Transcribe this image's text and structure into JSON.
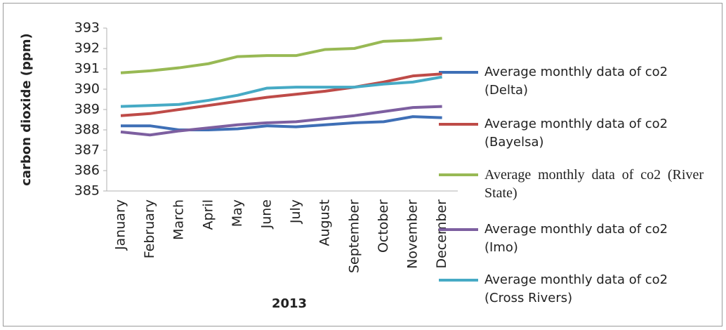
{
  "chart_data": {
    "type": "line",
    "x_label": "2013",
    "y_label": "carbon dioxide (ppm)",
    "categories": [
      "January",
      "February",
      "March",
      "April",
      "May",
      "June",
      "July",
      "August",
      "September",
      "October",
      "November",
      "December"
    ],
    "ylim": [
      385,
      393
    ],
    "yticks": [
      385,
      386,
      387,
      388,
      389,
      390,
      391,
      392,
      393
    ],
    "grid": false,
    "legend": "right",
    "series": [
      {
        "name": "Average monthly data of co2 (Delta)",
        "color": "#3e6fb6",
        "values": [
          388.2,
          388.2,
          388.0,
          388.0,
          388.05,
          388.2,
          388.15,
          388.25,
          388.35,
          388.4,
          388.65,
          388.6
        ]
      },
      {
        "name": "Average monthly data of co2 (Bayelsa)",
        "color": "#be4b48",
        "values": [
          388.7,
          388.8,
          389.0,
          389.2,
          389.4,
          389.6,
          389.75,
          389.9,
          390.1,
          390.35,
          390.65,
          390.75
        ]
      },
      {
        "name": "Average monthly data of co2 (River State)",
        "color": "#98b954",
        "values": [
          390.8,
          390.9,
          391.05,
          391.25,
          391.6,
          391.65,
          391.65,
          391.95,
          392.0,
          392.35,
          392.4,
          392.5
        ]
      },
      {
        "name": "Average monthly data of co2 (Imo)",
        "color": "#7d5fa0",
        "values": [
          387.9,
          387.75,
          387.95,
          388.1,
          388.25,
          388.35,
          388.4,
          388.55,
          388.7,
          388.9,
          389.1,
          389.15
        ]
      },
      {
        "name": "Average monthly data of co2 (Cross Rivers)",
        "color": "#46aac5",
        "values": [
          389.15,
          389.2,
          389.25,
          389.45,
          389.7,
          390.05,
          390.1,
          390.1,
          390.1,
          390.25,
          390.35,
          390.6
        ]
      }
    ]
  }
}
